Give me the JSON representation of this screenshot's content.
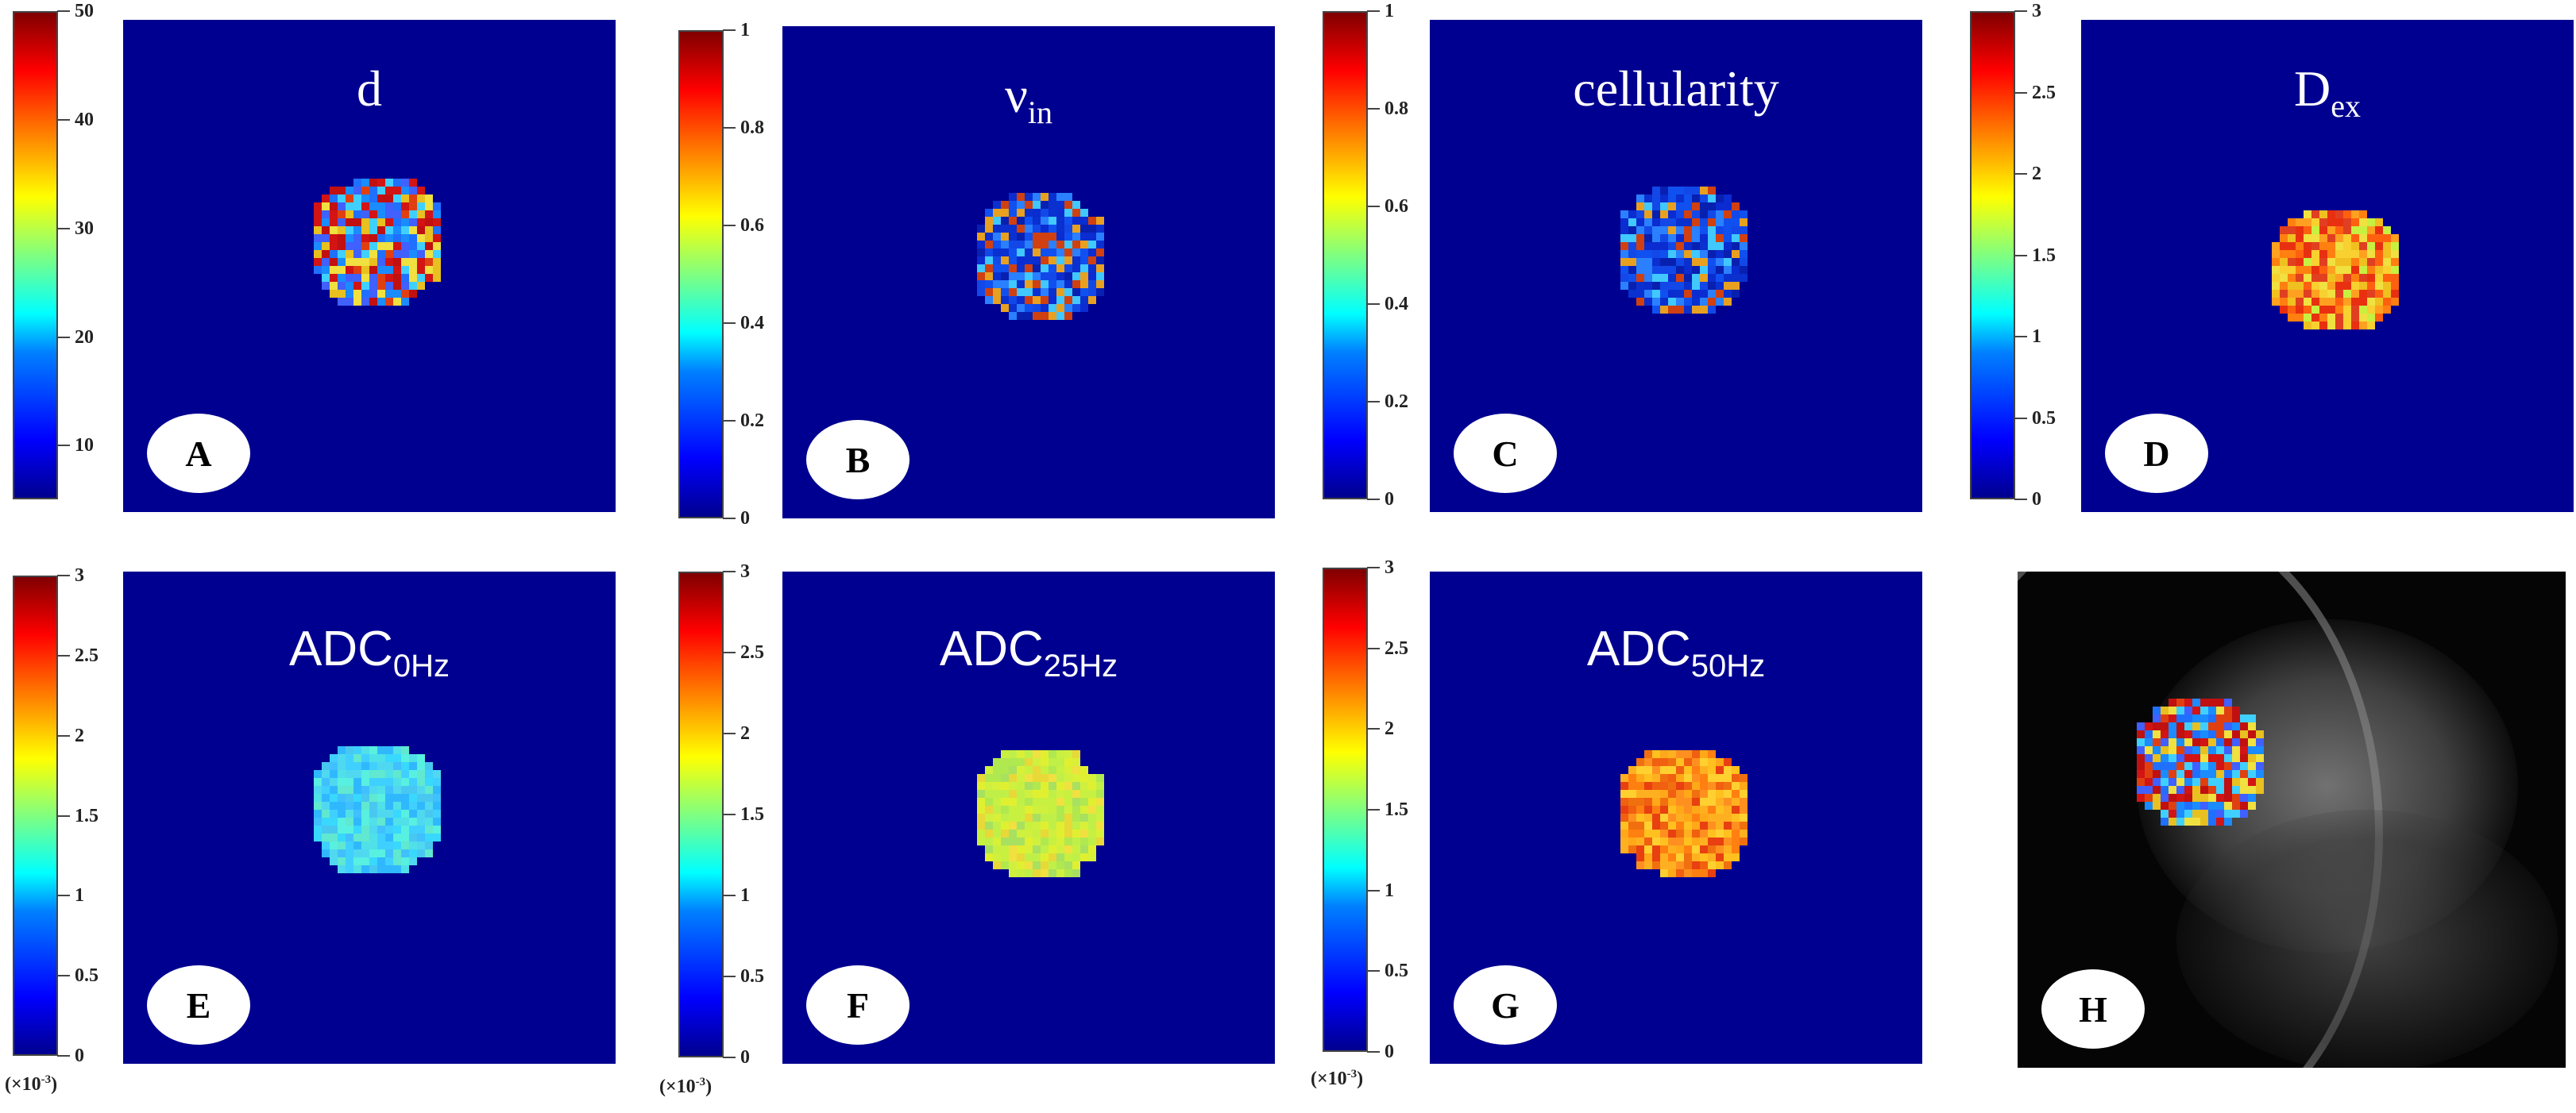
{
  "colormap": [
    "#00008f",
    "#0000ff",
    "#0080ff",
    "#00ffff",
    "#80ff80",
    "#ffff00",
    "#ff8000",
    "#ff0000",
    "#800000"
  ],
  "background_color": "#000090",
  "panels": [
    {
      "id": "A",
      "label": "A",
      "title": "d",
      "title_sub": "",
      "colorbar_ticks": [
        "50",
        "40",
        "30",
        "20",
        "10"
      ],
      "scale_note": "",
      "blob_colors": [
        "#d21414",
        "#e8c020",
        "#2070ff",
        "#1a8cff",
        "#e04010",
        "#4060ff",
        "#40d0ff",
        "#c01010",
        "#f0e040"
      ]
    },
    {
      "id": "B",
      "label": "B",
      "title": "ν",
      "title_sub": "in",
      "colorbar_ticks": [
        "1",
        "0.8",
        "0.6",
        "0.4",
        "0.2",
        "0"
      ],
      "scale_note": "",
      "blob_colors": [
        "#0a2cd0",
        "#1248e8",
        "#0820b0",
        "#2a80ff",
        "#e8a020",
        "#0a30d0",
        "#d04010",
        "#1050f0",
        "#40c8ff"
      ]
    },
    {
      "id": "C",
      "label": "C",
      "title": "cellularity",
      "title_sub": "",
      "colorbar_ticks": [
        "1",
        "0.8",
        "0.6",
        "0.4",
        "0.2",
        "0"
      ],
      "scale_note": "",
      "blob_colors": [
        "#0a2cd0",
        "#1248e8",
        "#0820b0",
        "#2a80ff",
        "#e8a020",
        "#0a30d0",
        "#d04010",
        "#1050f0",
        "#40c8ff"
      ]
    },
    {
      "id": "D",
      "label": "D",
      "title": "D",
      "title_sub": "ex",
      "colorbar_ticks": [
        "3",
        "2.5",
        "2",
        "1.5",
        "1",
        "0.5",
        "0"
      ],
      "scale_note": "",
      "blob_colors": [
        "#f0c020",
        "#ff8010",
        "#f0e040",
        "#e83010",
        "#ffa020",
        "#c8f040",
        "#ff6010",
        "#f8d030",
        "#e04020"
      ]
    },
    {
      "id": "E",
      "label": "E",
      "title": "ADC",
      "title_sub": "0Hz",
      "colorbar_ticks": [
        "3",
        "2.5",
        "2",
        "1.5",
        "1",
        "0.5",
        "0"
      ],
      "scale_note": "(×10",
      "scale_exp": "-3",
      "scale_close": ")",
      "blob_colors": [
        "#40d0ff",
        "#50e0e8",
        "#30b8ff",
        "#60e8d0",
        "#48c8f0",
        "#38d8ff",
        "#58f0e0",
        "#40c0ff",
        "#50d8f0"
      ]
    },
    {
      "id": "F",
      "label": "F",
      "title": "ADC",
      "title_sub": "25Hz",
      "colorbar_ticks": [
        "3",
        "2.5",
        "2",
        "1.5",
        "1",
        "0.5",
        "0"
      ],
      "scale_note": "(×10",
      "scale_exp": "-3",
      "scale_close": ")",
      "blob_colors": [
        "#c8f040",
        "#e0f030",
        "#b0e850",
        "#f0e040",
        "#d0f040",
        "#a8e060",
        "#e8d838",
        "#c0f048",
        "#d8f038"
      ]
    },
    {
      "id": "G",
      "label": "G",
      "title": "ADC",
      "title_sub": "50Hz",
      "colorbar_ticks": [
        "3",
        "2.5",
        "2",
        "1.5",
        "1",
        "0.5",
        "0"
      ],
      "scale_note": "(×10",
      "scale_exp": "-3",
      "scale_close": ")",
      "blob_colors": [
        "#ff9020",
        "#ffc020",
        "#f06010",
        "#ffb020",
        "#e84010",
        "#ff8010",
        "#ffd030",
        "#f07010",
        "#ffa818"
      ]
    },
    {
      "id": "H",
      "label": "H",
      "title": "",
      "title_sub": "",
      "colorbar_ticks": [],
      "scale_note": "",
      "blob_colors": [
        "#d21414",
        "#e8c020",
        "#2070ff",
        "#1a8cff",
        "#e04010",
        "#4060ff",
        "#40d0ff",
        "#c01010",
        "#f0e040"
      ]
    }
  ]
}
